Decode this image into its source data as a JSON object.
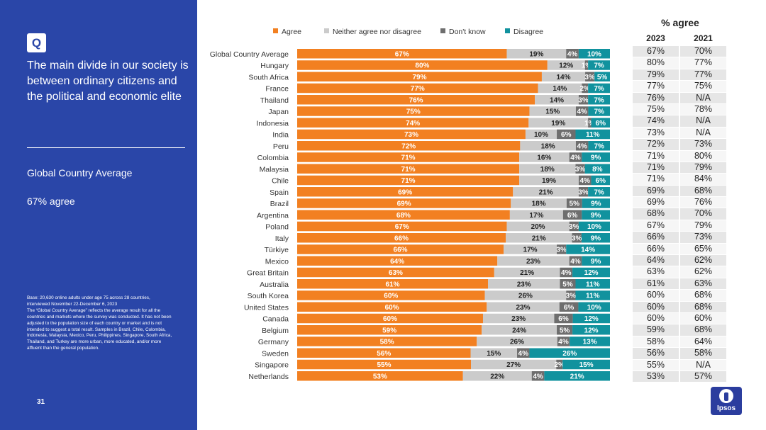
{
  "sidebar": {
    "badge": "Q",
    "question": "The main divide in our society is between ordinary citizens and the political and economic elite",
    "average_label": "Global Country Average",
    "average_value": "67% agree",
    "base_note": "Base: 20,630 online adults under age 75 across 28 countries, interviewed November 22-December 6, 2023",
    "gca_note": "The “Global Country Average” reflects the average result for all the countries and markets where the survey was conducted. It has not been adjusted to the population size of each country or market and is not intended to suggest a total result. Samples in Brazil, Chile, Colombia, Indonesia, Malaysia, Mexico, Peru, Philippines, Singapore, South Africa, Thailand, and Turkey are more urban, more educated, and/or more affluent than the general population.",
    "page_number": "31"
  },
  "colors": {
    "sidebar_bg": "#2a46a8",
    "agree": "#f28021",
    "neither": "#cbcbcb",
    "dont_know": "#6e6e6e",
    "disagree": "#11929e"
  },
  "comparison": {
    "title": "% agree",
    "col_2023": "2023",
    "col_2021": "2021",
    "rows": [
      [
        "67%",
        "70%"
      ],
      [
        "80%",
        "77%"
      ],
      [
        "79%",
        "77%"
      ],
      [
        "77%",
        "75%"
      ],
      [
        "76%",
        "N/A"
      ],
      [
        "75%",
        "78%"
      ],
      [
        "74%",
        "N/A"
      ],
      [
        "73%",
        "N/A"
      ],
      [
        "72%",
        "73%"
      ],
      [
        "71%",
        "80%"
      ],
      [
        "71%",
        "79%"
      ],
      [
        "71%",
        "84%"
      ],
      [
        "69%",
        "68%"
      ],
      [
        "69%",
        "76%"
      ],
      [
        "68%",
        "70%"
      ],
      [
        "67%",
        "79%"
      ],
      [
        "66%",
        "73%"
      ],
      [
        "66%",
        "65%"
      ],
      [
        "64%",
        "62%"
      ],
      [
        "63%",
        "62%"
      ],
      [
        "61%",
        "63%"
      ],
      [
        "60%",
        "68%"
      ],
      [
        "60%",
        "68%"
      ],
      [
        "60%",
        "60%"
      ],
      [
        "59%",
        "68%"
      ],
      [
        "58%",
        "64%"
      ],
      [
        "56%",
        "58%"
      ],
      [
        "55%",
        "N/A"
      ],
      [
        "53%",
        "57%"
      ]
    ]
  },
  "logo": {
    "text": "Ipsos"
  },
  "chart_data": {
    "type": "bar",
    "orientation": "horizontal",
    "stacked": true,
    "legend_position": "top",
    "categories": [
      "Global Country Average",
      "Hungary",
      "South Africa",
      "France",
      "Thailand",
      "Japan",
      "Indonesia",
      "India",
      "Peru",
      "Colombia",
      "Malaysia",
      "Chile",
      "Spain",
      "Brazil",
      "Argentina",
      "Poland",
      "Italy",
      "Türkiye",
      "Mexico",
      "Great Britain",
      "Australia",
      "South Korea",
      "United States",
      "Canada",
      "Belgium",
      "Germany",
      "Sweden",
      "Singapore",
      "Netherlands"
    ],
    "series": [
      {
        "name": "Agree",
        "values": [
          67,
          80,
          79,
          77,
          76,
          75,
          74,
          73,
          72,
          71,
          71,
          71,
          69,
          69,
          68,
          67,
          66,
          66,
          64,
          63,
          61,
          60,
          60,
          60,
          59,
          58,
          56,
          55,
          53
        ]
      },
      {
        "name": "Neither agree nor disagree",
        "values": [
          19,
          12,
          14,
          14,
          14,
          15,
          19,
          10,
          18,
          16,
          18,
          19,
          21,
          18,
          17,
          20,
          21,
          17,
          23,
          21,
          23,
          26,
          23,
          23,
          24,
          26,
          15,
          27,
          22
        ]
      },
      {
        "name": "Don't know",
        "values": [
          4,
          1,
          3,
          2,
          3,
          4,
          1,
          6,
          4,
          4,
          3,
          4,
          3,
          5,
          6,
          3,
          3,
          3,
          4,
          4,
          5,
          3,
          6,
          6,
          5,
          4,
          4,
          2,
          4
        ]
      },
      {
        "name": "Disagree",
        "values": [
          10,
          7,
          5,
          7,
          7,
          7,
          6,
          11,
          7,
          9,
          8,
          6,
          7,
          9,
          9,
          10,
          9,
          14,
          9,
          12,
          11,
          11,
          10,
          12,
          12,
          13,
          26,
          15,
          21
        ]
      }
    ],
    "xlim": [
      0,
      100
    ],
    "value_suffix": "%"
  }
}
